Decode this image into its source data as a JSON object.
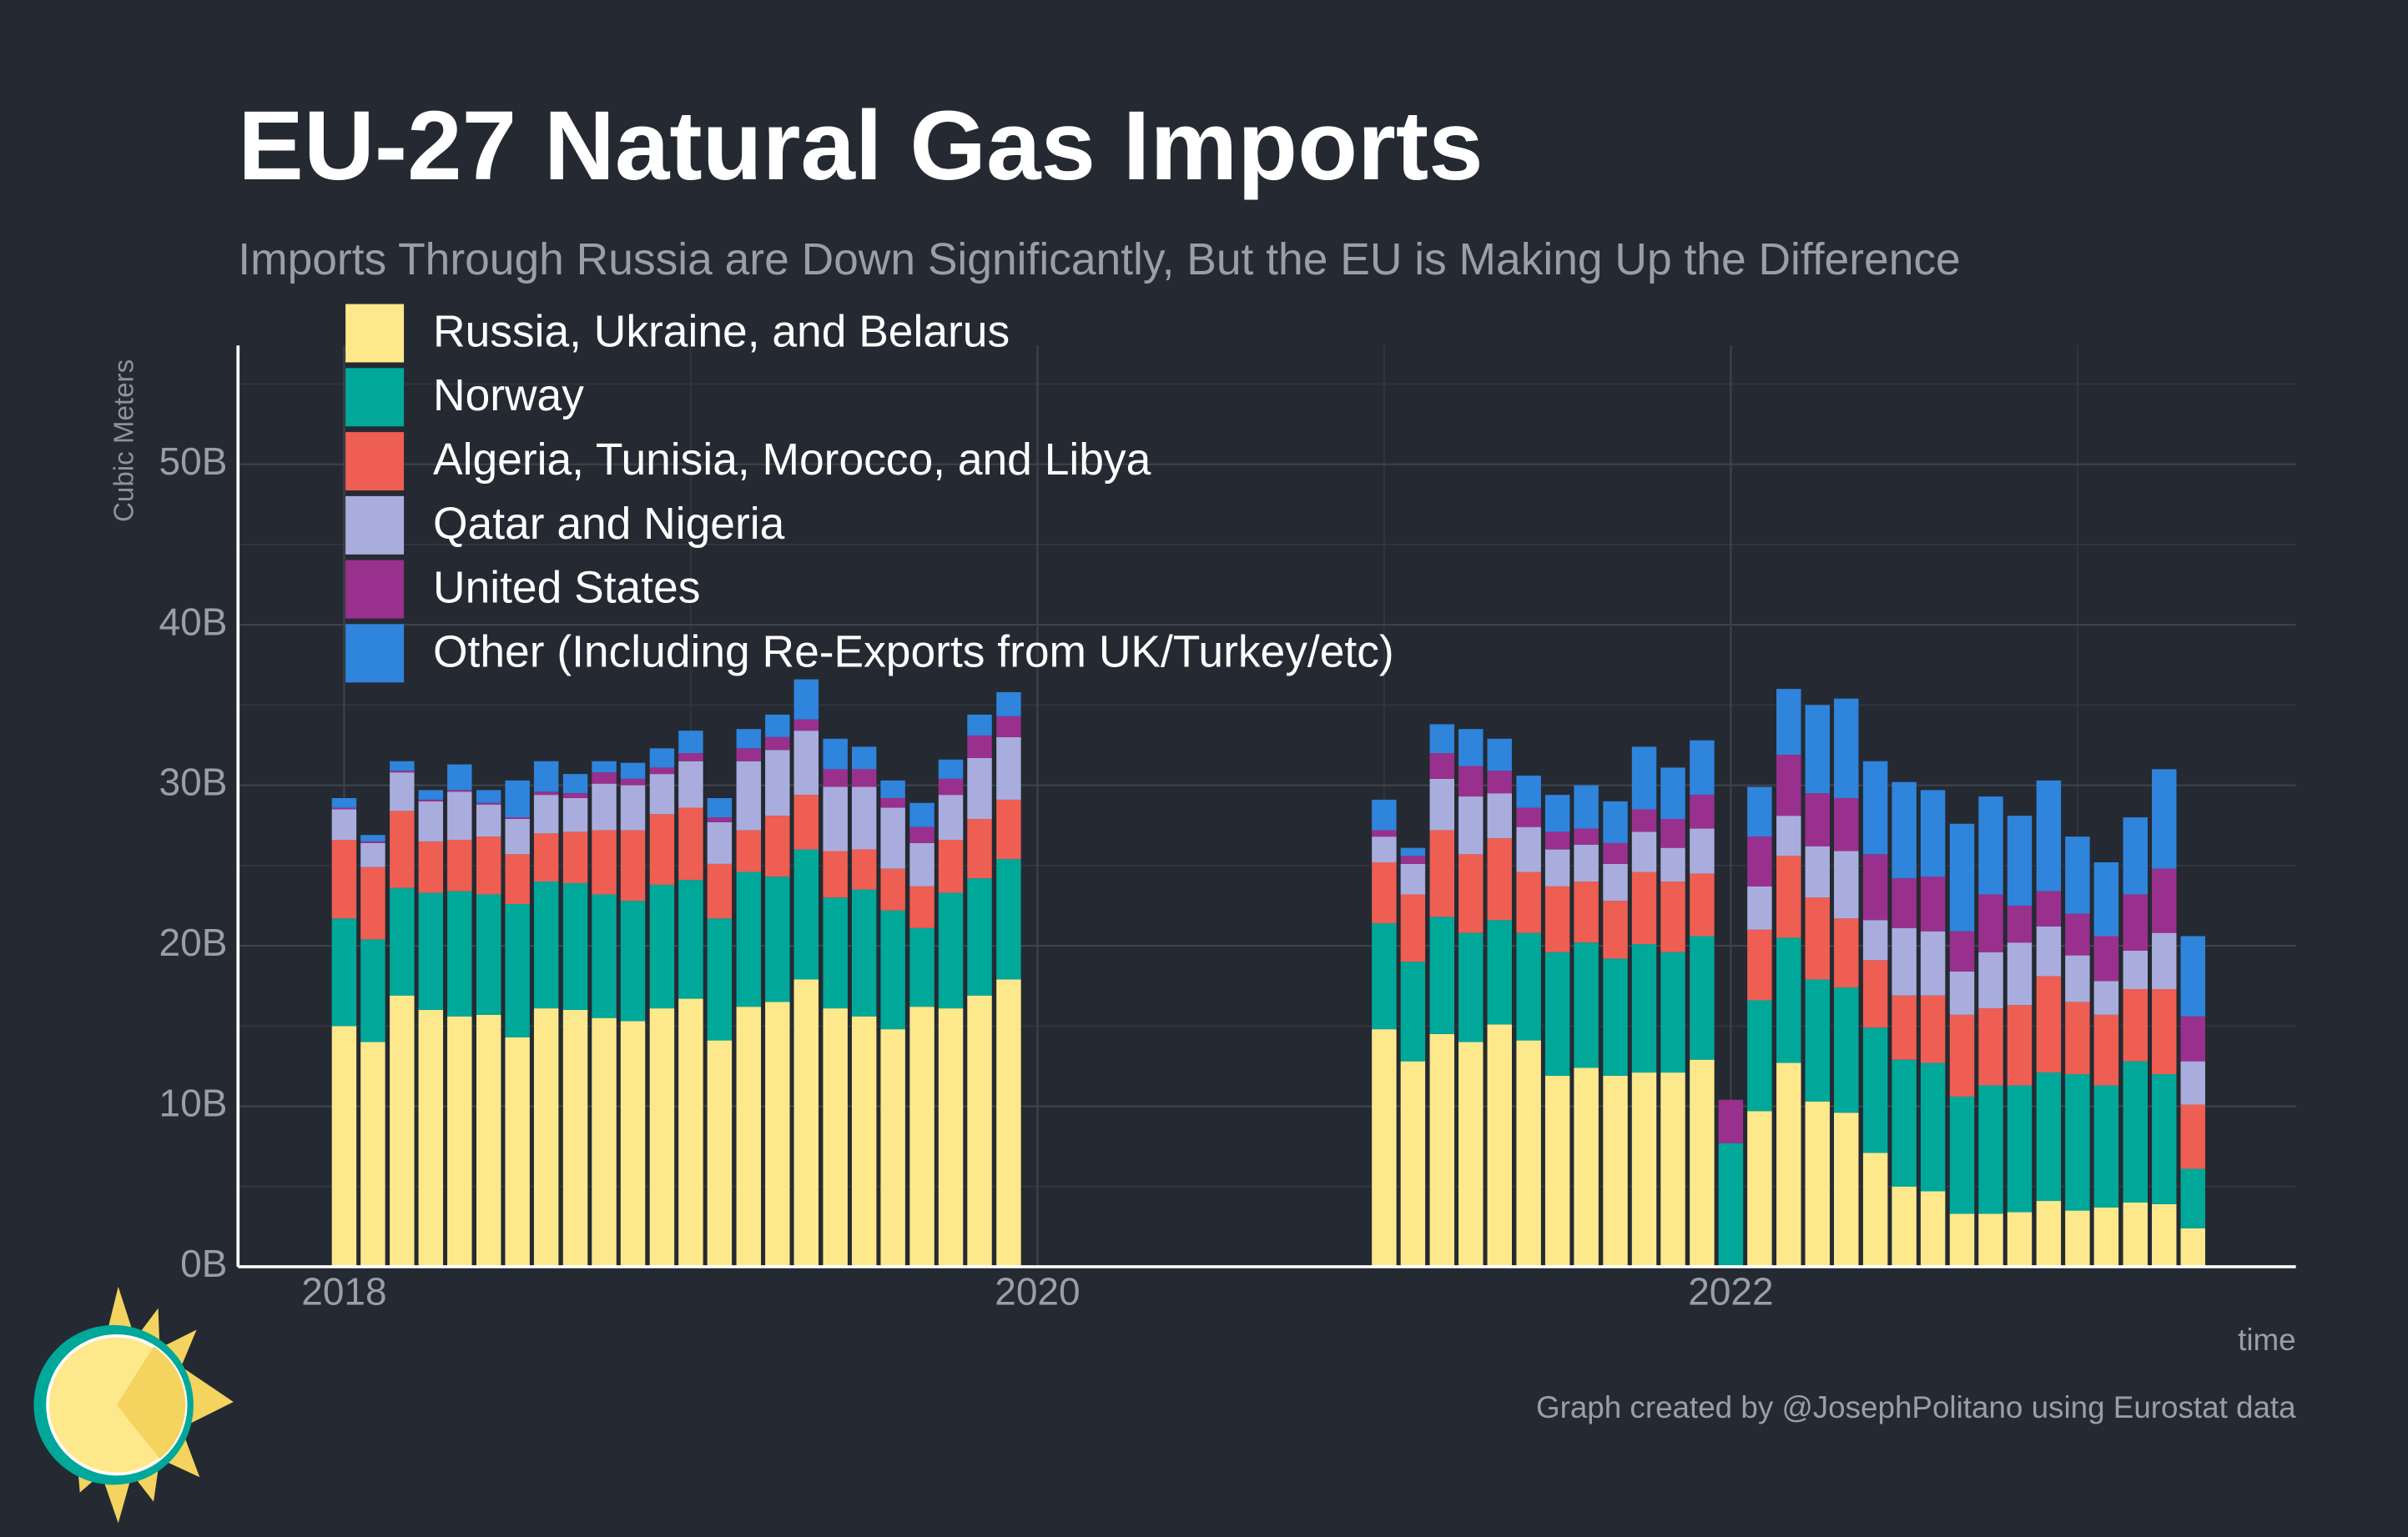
{
  "chart_data": {
    "type": "stacked-bar",
    "title": "EU-27 Natural Gas Imports",
    "subtitle": "Imports Through Russia are Down Significantly, But the EU is Making Up the Difference",
    "y_label": "Cubic Meters",
    "x_label": "time",
    "caption": "Graph created by @JosephPolitano using Eurostat data",
    "legend": "upper left",
    "grid": true,
    "xlim": [
      2017.694,
      2023.63
    ],
    "xticks": [
      2018,
      2020,
      2022
    ],
    "minor_xticks": [
      2019,
      2021,
      2023
    ],
    "ylim": [
      0,
      57400000000.0
    ],
    "yticks": [
      {
        "value": 0,
        "label": "0B"
      },
      {
        "value": 10000000000.0,
        "label": "10B"
      },
      {
        "value": 20000000000.0,
        "label": "20B"
      },
      {
        "value": 30000000000.0,
        "label": "30B"
      },
      {
        "value": 40000000000.0,
        "label": "40B"
      },
      {
        "value": 50000000000.0,
        "label": "50B"
      }
    ],
    "minor_yticks": [
      5000000000.0,
      15000000000.0,
      25000000000.0,
      35000000000.0,
      45000000000.0,
      55000000000.0
    ],
    "x": [
      2018,
      2018.083,
      2018.167,
      2018.25,
      2018.333,
      2018.417,
      2018.5,
      2018.583,
      2018.667,
      2018.75,
      2018.833,
      2018.917,
      2019,
      2019.083,
      2019.167,
      2019.25,
      2019.333,
      2019.417,
      2019.5,
      2019.583,
      2019.667,
      2019.75,
      2019.833,
      2019.917,
      2021,
      2021.083,
      2021.167,
      2021.25,
      2021.333,
      2021.417,
      2021.5,
      2021.583,
      2021.667,
      2021.75,
      2021.833,
      2021.917,
      2022,
      2022.083,
      2022.167,
      2022.25,
      2022.333,
      2022.417,
      2022.5,
      2022.583,
      2022.667,
      2022.75,
      2022.833,
      2022.917,
      2023,
      2023.083,
      2023.167,
      2023.25,
      2023.333
    ],
    "series": [
      {
        "name": "Russia, Ukraine, and Belarus",
        "color": "#fde88c",
        "values": [
          15000000000.0,
          14000000000.0,
          16900000000.0,
          16000000000.0,
          15600000000.0,
          15700000000.0,
          14300000000.0,
          16100000000.0,
          16000000000.0,
          15500000000.0,
          15300000000.0,
          16100000000.0,
          16700000000.0,
          14100000000.0,
          16200000000.0,
          16500000000.0,
          17900000000.0,
          16100000000.0,
          15600000000.0,
          14800000000.0,
          16200000000.0,
          16100000000.0,
          16900000000.0,
          17900000000.0,
          14800000000.0,
          12800000000.0,
          14500000000.0,
          14000000000.0,
          15100000000.0,
          14100000000.0,
          11900000000.0,
          12400000000.0,
          11900000000.0,
          12100000000.0,
          12100000000.0,
          12900000000.0,
          0,
          9700000000.0,
          12700000000.0,
          10300000000.0,
          9600000000.0,
          7100000000.0,
          5000000000.0,
          4700000000.0,
          3300000000.0,
          3300000000.0,
          3400000000.0,
          4100000000.0,
          3500000000.0,
          3700000000.0,
          4000000000.0,
          3900000000.0,
          2400000000.0
        ]
      },
      {
        "name": "Norway",
        "color": "#00a89a",
        "values": [
          6700000000.0,
          6400000000.0,
          6700000000.0,
          7300000000.0,
          7800000000.0,
          7500000000.0,
          8300000000.0,
          7900000000.0,
          7900000000.0,
          7700000000.0,
          7500000000.0,
          7700000000.0,
          7400000000.0,
          7600000000.0,
          8400000000.0,
          7800000000.0,
          8100000000.0,
          6900000000.0,
          7900000000.0,
          7400000000.0,
          4900000000.0,
          7200000000.0,
          7300000000.0,
          7500000000.0,
          6600000000.0,
          6200000000.0,
          7300000000.0,
          6800000000.0,
          6500000000.0,
          6700000000.0,
          7700000000.0,
          7800000000.0,
          7300000000.0,
          8000000000.0,
          7500000000.0,
          7700000000.0,
          7700000000.0,
          6900000000.0,
          7800000000.0,
          7600000000.0,
          7800000000.0,
          7800000000.0,
          7900000000.0,
          8000000000.0,
          7300000000.0,
          8000000000.0,
          7900000000.0,
          8000000000.0,
          8500000000.0,
          7600000000.0,
          8800000000.0,
          8100000000.0,
          3700000000.0
        ]
      },
      {
        "name": "Algeria, Tunisia, Morocco, and Libya",
        "color": "#ee5e52",
        "values": [
          4900000000.0,
          4500000000.0,
          4800000000.0,
          3200000000.0,
          3200000000.0,
          3600000000.0,
          3100000000.0,
          3000000000.0,
          3200000000.0,
          4000000000.0,
          4400000000.0,
          4400000000.0,
          4500000000.0,
          3400000000.0,
          2600000000.0,
          3800000000.0,
          3400000000.0,
          2900000000.0,
          2500000000.0,
          2600000000.0,
          2600000000.0,
          3300000000.0,
          3700000000.0,
          3700000000.0,
          3800000000.0,
          4200000000.0,
          5400000000.0,
          4900000000.0,
          5100000000.0,
          3800000000.0,
          4100000000.0,
          3800000000.0,
          3600000000.0,
          4500000000.0,
          4400000000.0,
          3900000000.0,
          0,
          4400000000.0,
          5100000000.0,
          5100000000.0,
          4300000000.0,
          4200000000.0,
          4000000000.0,
          4200000000.0,
          5100000000.0,
          4800000000.0,
          5000000000.0,
          6000000000.0,
          4500000000.0,
          4400000000.0,
          4500000000.0,
          5300000000.0,
          4000000000.0
        ]
      },
      {
        "name": "Qatar and Nigeria",
        "color": "#a9addd",
        "values": [
          1900000000.0,
          1500000000.0,
          2400000000.0,
          2500000000.0,
          3000000000.0,
          2000000000.0,
          2200000000.0,
          2400000000.0,
          2100000000.0,
          2900000000.0,
          2800000000.0,
          2500000000.0,
          2900000000.0,
          2600000000.0,
          4300000000.0,
          4100000000.0,
          4000000000.0,
          4000000000.0,
          3900000000.0,
          3800000000.0,
          2700000000.0,
          2800000000.0,
          3800000000.0,
          3900000000.0,
          1600000000.0,
          1900000000.0,
          3200000000.0,
          3600000000.0,
          2800000000.0,
          2800000000.0,
          2300000000.0,
          2300000000.0,
          2300000000.0,
          2500000000.0,
          2100000000.0,
          2800000000.0,
          0,
          2700000000.0,
          2500000000.0,
          3200000000.0,
          4200000000.0,
          2500000000.0,
          4200000000.0,
          4000000000.0,
          2700000000.0,
          3500000000.0,
          3900000000.0,
          3100000000.0,
          2900000000.0,
          2100000000.0,
          2400000000.0,
          3500000000.0,
          2700000000.0
        ]
      },
      {
        "name": "United States",
        "color": "#9a308d",
        "values": [
          100000000.0,
          100000000.0,
          100000000.0,
          100000000.0,
          100000000.0,
          100000000.0,
          100000000.0,
          200000000.0,
          300000000.0,
          700000000.0,
          400000000.0,
          400000000.0,
          500000000.0,
          300000000.0,
          800000000.0,
          800000000.0,
          700000000.0,
          1100000000.0,
          1100000000.0,
          600000000.0,
          1000000000.0,
          1000000000.0,
          1400000000.0,
          1300000000.0,
          400000000.0,
          500000000.0,
          1600000000.0,
          1900000000.0,
          1400000000.0,
          1200000000.0,
          1100000000.0,
          1000000000.0,
          1300000000.0,
          1400000000.0,
          1800000000.0,
          2100000000.0,
          2700000000.0,
          3100000000.0,
          3800000000.0,
          3300000000.0,
          3300000000.0,
          4100000000.0,
          3100000000.0,
          3400000000.0,
          2500000000.0,
          3600000000.0,
          2300000000.0,
          2200000000.0,
          2600000000.0,
          2800000000.0,
          3500000000.0,
          4000000000.0,
          2800000000.0
        ]
      },
      {
        "name": "Other (Including Re-Exports from UK/Turkey/etc)",
        "color": "#2f84dc",
        "values": [
          600000000.0,
          400000000.0,
          600000000.0,
          600000000.0,
          1600000000.0,
          800000000.0,
          2300000000.0,
          1900000000.0,
          1200000000.0,
          700000000.0,
          1000000000.0,
          1200000000.0,
          1400000000.0,
          1200000000.0,
          1200000000.0,
          1400000000.0,
          2500000000.0,
          1900000000.0,
          1400000000.0,
          1100000000.0,
          1500000000.0,
          1200000000.0,
          1300000000.0,
          1500000000.0,
          1900000000.0,
          500000000.0,
          1800000000.0,
          2300000000.0,
          2000000000.0,
          2000000000.0,
          2300000000.0,
          2700000000.0,
          2600000000.0,
          3900000000.0,
          3200000000.0,
          3400000000.0,
          0,
          3100000000.0,
          4100000000.0,
          5500000000.0,
          6200000000.0,
          5800000000.0,
          6000000000.0,
          5400000000.0,
          6700000000.0,
          6100000000.0,
          5600000000.0,
          6900000000.0,
          4800000000.0,
          4600000000.0,
          4800000000.0,
          6200000000.0,
          5000000000.0
        ]
      }
    ]
  }
}
